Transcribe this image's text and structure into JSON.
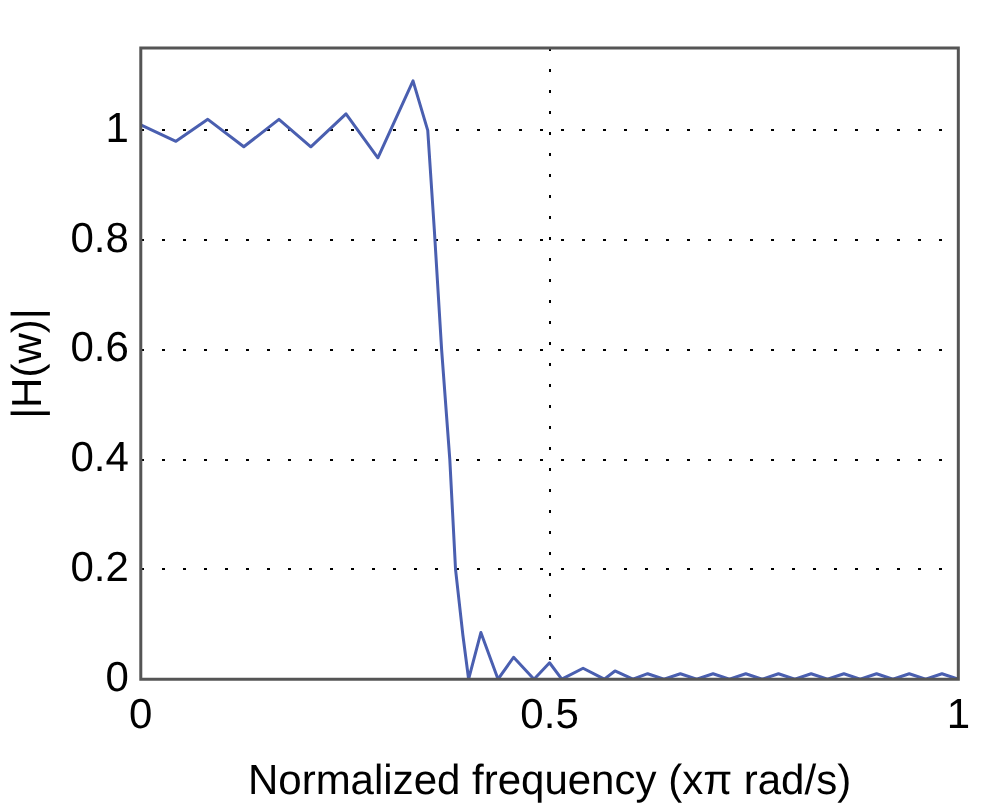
{
  "chart_data": {
    "type": "line",
    "xlabel": "Normalized frequency (xπ rad/s)",
    "ylabel": "|H(w)|",
    "xlim": [
      0,
      1
    ],
    "ylim": [
      0,
      1.15
    ],
    "xticks": [
      0,
      0.5,
      1
    ],
    "yticks": [
      0,
      0.2,
      0.4,
      0.6,
      0.8,
      1
    ],
    "grid": true,
    "legend": false,
    "marker": "none",
    "line_style": "solid",
    "series": [
      {
        "color": "#4a5fb0",
        "x": [
          0,
          0.043,
          0.082,
          0.126,
          0.169,
          0.208,
          0.251,
          0.29,
          0.333,
          0.351,
          0.359,
          0.368,
          0.378,
          0.385,
          0.394,
          0.401,
          0.416,
          0.437,
          0.456,
          0.481,
          0.5,
          0.515,
          0.541,
          0.567,
          0.58,
          0.602,
          0.62,
          0.64,
          0.66,
          0.68,
          0.7,
          0.72,
          0.74,
          0.76,
          0.78,
          0.8,
          0.82,
          0.84,
          0.86,
          0.88,
          0.9,
          0.92,
          0.94,
          0.96,
          0.98,
          1
        ],
        "values": [
          1.01,
          0.98,
          1.02,
          0.97,
          1.02,
          0.97,
          1.03,
          0.95,
          1.09,
          1.0,
          0.82,
          0.6,
          0.4,
          0.2,
          0.08,
          0,
          0.085,
          0,
          0.04,
          0,
          0.03,
          0,
          0.02,
          0,
          0.015,
          0,
          0.01,
          0,
          0.01,
          0,
          0.01,
          0,
          0.01,
          0,
          0.01,
          0,
          0.01,
          0,
          0.01,
          0,
          0.01,
          0,
          0.01,
          0,
          0.01,
          0
        ]
      }
    ]
  }
}
